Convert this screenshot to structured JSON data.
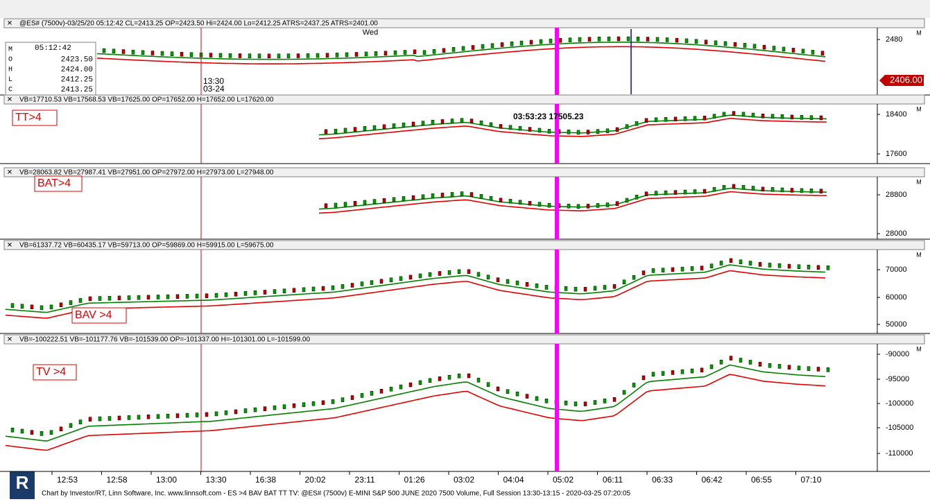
{
  "panels": [
    {
      "header": "@ES# (7500v)-03/25/20 05:12:42 CL=2413.25 OP=2423.50 Hi=2424.00 Lo=2412.25 ATRS=2437.25 ATRS=2401.00",
      "day": "Wed",
      "ohlc_time": "05:12:42",
      "ohlc": [
        [
          "M",
          ""
        ],
        [
          "O",
          "2423.50"
        ],
        [
          "H",
          "2424.00"
        ],
        [
          "L",
          "2412.25"
        ],
        [
          "C",
          "2413.25"
        ]
      ],
      "cursor_time": "13:30",
      "cursor_date": "03-24",
      "yticks": [
        "2480"
      ],
      "last_price": "2406.00"
    },
    {
      "header": "VB=17710.53 VB=17568.53 VB=17625.00 OP=17652.00 H=17652.00 L=17620.00",
      "label": "TT>4",
      "annotation": "03:53:23  17505.23",
      "yticks": [
        "18400",
        "17600"
      ]
    },
    {
      "header": "VB=28063.82 VB=27987.41 VB=27951.00 OP=27972.00 H=27973.00 L=27948.00",
      "label": "BAT>4",
      "yticks": [
        "28800",
        "28000"
      ]
    },
    {
      "header": "VB=61337.72 VB=60435.17 VB=59713.00 OP=59869.00 H=59915.00 L=59675.00",
      "label": "BAV >4",
      "yticks": [
        "70000",
        "60000",
        "50000"
      ]
    },
    {
      "header": "VB=-100222.51 VB=-101177.76 VB=-101539.00 OP=-101337.00 H=-101301.00 L=-101599.00",
      "label": "TV >4",
      "yticks": [
        "-90000",
        "-95000",
        "-100000",
        "-105000",
        "-110000"
      ]
    }
  ],
  "time_axis": [
    "12:53",
    "12:58",
    "13:00",
    "13:30",
    "16:38",
    "20:02",
    "23:11",
    "01:26",
    "03:02",
    "04:04",
    "05:02",
    "06:11",
    "06:33",
    "06:42",
    "06:55",
    "07:10"
  ],
  "footer": "Chart by Investor/RT, Linn Software, Inc. www.linnsoft.com - ES >4 BAV BAT TT TV: @ES# (7500v) E-MINI S&P 500 JUNE 2020 7500 Volume, Full Session 13:30-13:15 - 2020-03-25 07:20:05"
}
